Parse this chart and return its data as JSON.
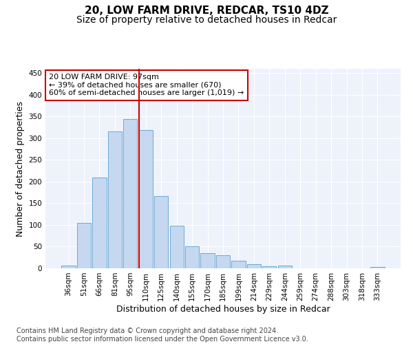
{
  "title1": "20, LOW FARM DRIVE, REDCAR, TS10 4DZ",
  "title2": "Size of property relative to detached houses in Redcar",
  "xlabel": "Distribution of detached houses by size in Redcar",
  "ylabel": "Number of detached properties",
  "bar_labels": [
    "36sqm",
    "51sqm",
    "66sqm",
    "81sqm",
    "95sqm",
    "110sqm",
    "125sqm",
    "140sqm",
    "155sqm",
    "170sqm",
    "185sqm",
    "199sqm",
    "214sqm",
    "229sqm",
    "244sqm",
    "259sqm",
    "274sqm",
    "288sqm",
    "303sqm",
    "318sqm",
    "333sqm"
  ],
  "bar_values": [
    7,
    105,
    209,
    316,
    345,
    319,
    166,
    98,
    50,
    35,
    30,
    17,
    10,
    4,
    6,
    0,
    0,
    0,
    0,
    0,
    3
  ],
  "bar_color": "#c5d8f0",
  "bar_edge_color": "#6aaad4",
  "vline_x": 4.55,
  "vline_color": "#cc0000",
  "annotation_text": "20 LOW FARM DRIVE: 97sqm\n← 39% of detached houses are smaller (670)\n60% of semi-detached houses are larger (1,019) →",
  "annotation_box_color": "white",
  "annotation_box_edge_color": "#cc0000",
  "ylim": [
    0,
    460
  ],
  "yticks": [
    0,
    50,
    100,
    150,
    200,
    250,
    300,
    350,
    400,
    450
  ],
  "footer": "Contains HM Land Registry data © Crown copyright and database right 2024.\nContains public sector information licensed under the Open Government Licence v3.0.",
  "title1_fontsize": 11,
  "title2_fontsize": 10,
  "xlabel_fontsize": 9,
  "ylabel_fontsize": 9,
  "tick_fontsize": 7.5,
  "annot_fontsize": 8,
  "footer_fontsize": 7,
  "bg_color": "#eef2fb"
}
